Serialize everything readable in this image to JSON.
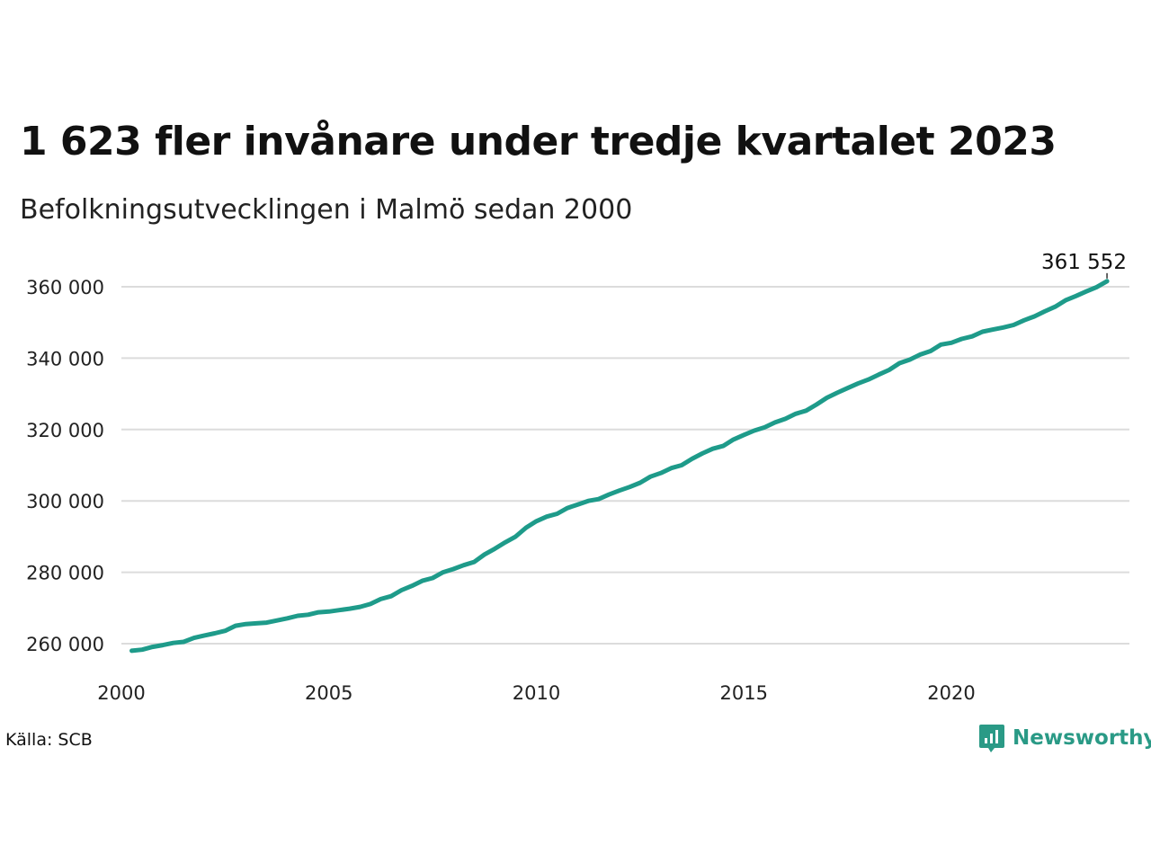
{
  "title": "1 623 fler invånare under tredje kvartalet 2023",
  "subtitle": "Befolkningsutvecklingen i Malmö sedan 2000",
  "source": "Källa: SCB",
  "brand": {
    "name": "Newsworthy",
    "icon": "newsworthy-logo-icon",
    "color": "#2a9a86"
  },
  "colors": {
    "line": "#1e9b8a",
    "grid": "#dcdcdc"
  },
  "chart_data": {
    "type": "line",
    "title": "1 623 fler invånare under tredje kvartalet 2023",
    "subtitle": "Befolkningsutvecklingen i Malmö sedan 2000",
    "xlabel": "",
    "ylabel": "",
    "xlim": [
      2000,
      2024.5
    ],
    "ylim": [
      255000,
      363000
    ],
    "x_ticks": [
      2000,
      2005,
      2010,
      2015,
      2020
    ],
    "x_tick_labels": [
      "2000",
      "2005",
      "2010",
      "2015",
      "2020"
    ],
    "y_ticks": [
      260000,
      280000,
      300000,
      320000,
      340000,
      360000
    ],
    "y_tick_labels": [
      "260 000",
      "280 000",
      "300 000",
      "320 000",
      "340 000",
      "360 000"
    ],
    "grid": true,
    "end_label": "361 552",
    "series": [
      {
        "x": [
          2000.25,
          2000.5,
          2000.75,
          2001.0,
          2001.25,
          2001.5,
          2001.75,
          2002.0,
          2002.25,
          2002.5,
          2002.75,
          2003.0,
          2003.25,
          2003.5,
          2003.75,
          2004.0,
          2004.25,
          2004.5,
          2004.75,
          2005.0,
          2005.25,
          2005.5,
          2005.75,
          2006.0,
          2006.25,
          2006.5,
          2006.75,
          2007.0,
          2007.25,
          2007.5,
          2007.75,
          2008.0,
          2008.25,
          2008.5,
          2008.75,
          2009.0,
          2009.25,
          2009.5,
          2009.75,
          2010.0,
          2010.25,
          2010.5,
          2010.75,
          2011.0,
          2011.25,
          2011.5,
          2011.75,
          2012.0,
          2012.25,
          2012.5,
          2012.75,
          2013.0,
          2013.25,
          2013.5,
          2013.75,
          2014.0,
          2014.25,
          2014.5,
          2014.75,
          2015.0,
          2015.25,
          2015.5,
          2015.75,
          2016.0,
          2016.25,
          2016.5,
          2016.75,
          2017.0,
          2017.25,
          2017.5,
          2017.75,
          2018.0,
          2018.25,
          2018.5,
          2018.75,
          2019.0,
          2019.25,
          2019.5,
          2019.75,
          2020.0,
          2020.25,
          2020.5,
          2020.75,
          2021.0,
          2021.25,
          2021.5,
          2021.75,
          2022.0,
          2022.25,
          2022.5,
          2022.75,
          2023.0,
          2023.25,
          2023.5,
          2023.75
        ],
        "y": [
          258000,
          258300,
          259100,
          259600,
          260200,
          260500,
          261600,
          262300,
          262900,
          263600,
          265000,
          265500,
          265700,
          265900,
          266500,
          267100,
          267800,
          268100,
          268800,
          269000,
          269400,
          269800,
          270300,
          271100,
          272500,
          273300,
          275000,
          276200,
          277600,
          278400,
          280000,
          280900,
          282000,
          282900,
          285000,
          286600,
          288400,
          290000,
          292500,
          294300,
          295600,
          296400,
          298000,
          299000,
          300000,
          300500,
          301800,
          302900,
          303900,
          305100,
          306800,
          307800,
          309200,
          310000,
          311800,
          313300,
          314600,
          315400,
          317200,
          318500,
          319700,
          320600,
          322000,
          323000,
          324400,
          325300,
          327000,
          328900,
          330300,
          331600,
          332900,
          334000,
          335400,
          336700,
          338600,
          339600,
          341000,
          342000,
          343800,
          344300,
          345400,
          346100,
          347400,
          348000,
          348600,
          349300,
          350600,
          351700,
          353100,
          354400,
          356200,
          357400,
          358700,
          359900,
          361552
        ]
      }
    ]
  }
}
